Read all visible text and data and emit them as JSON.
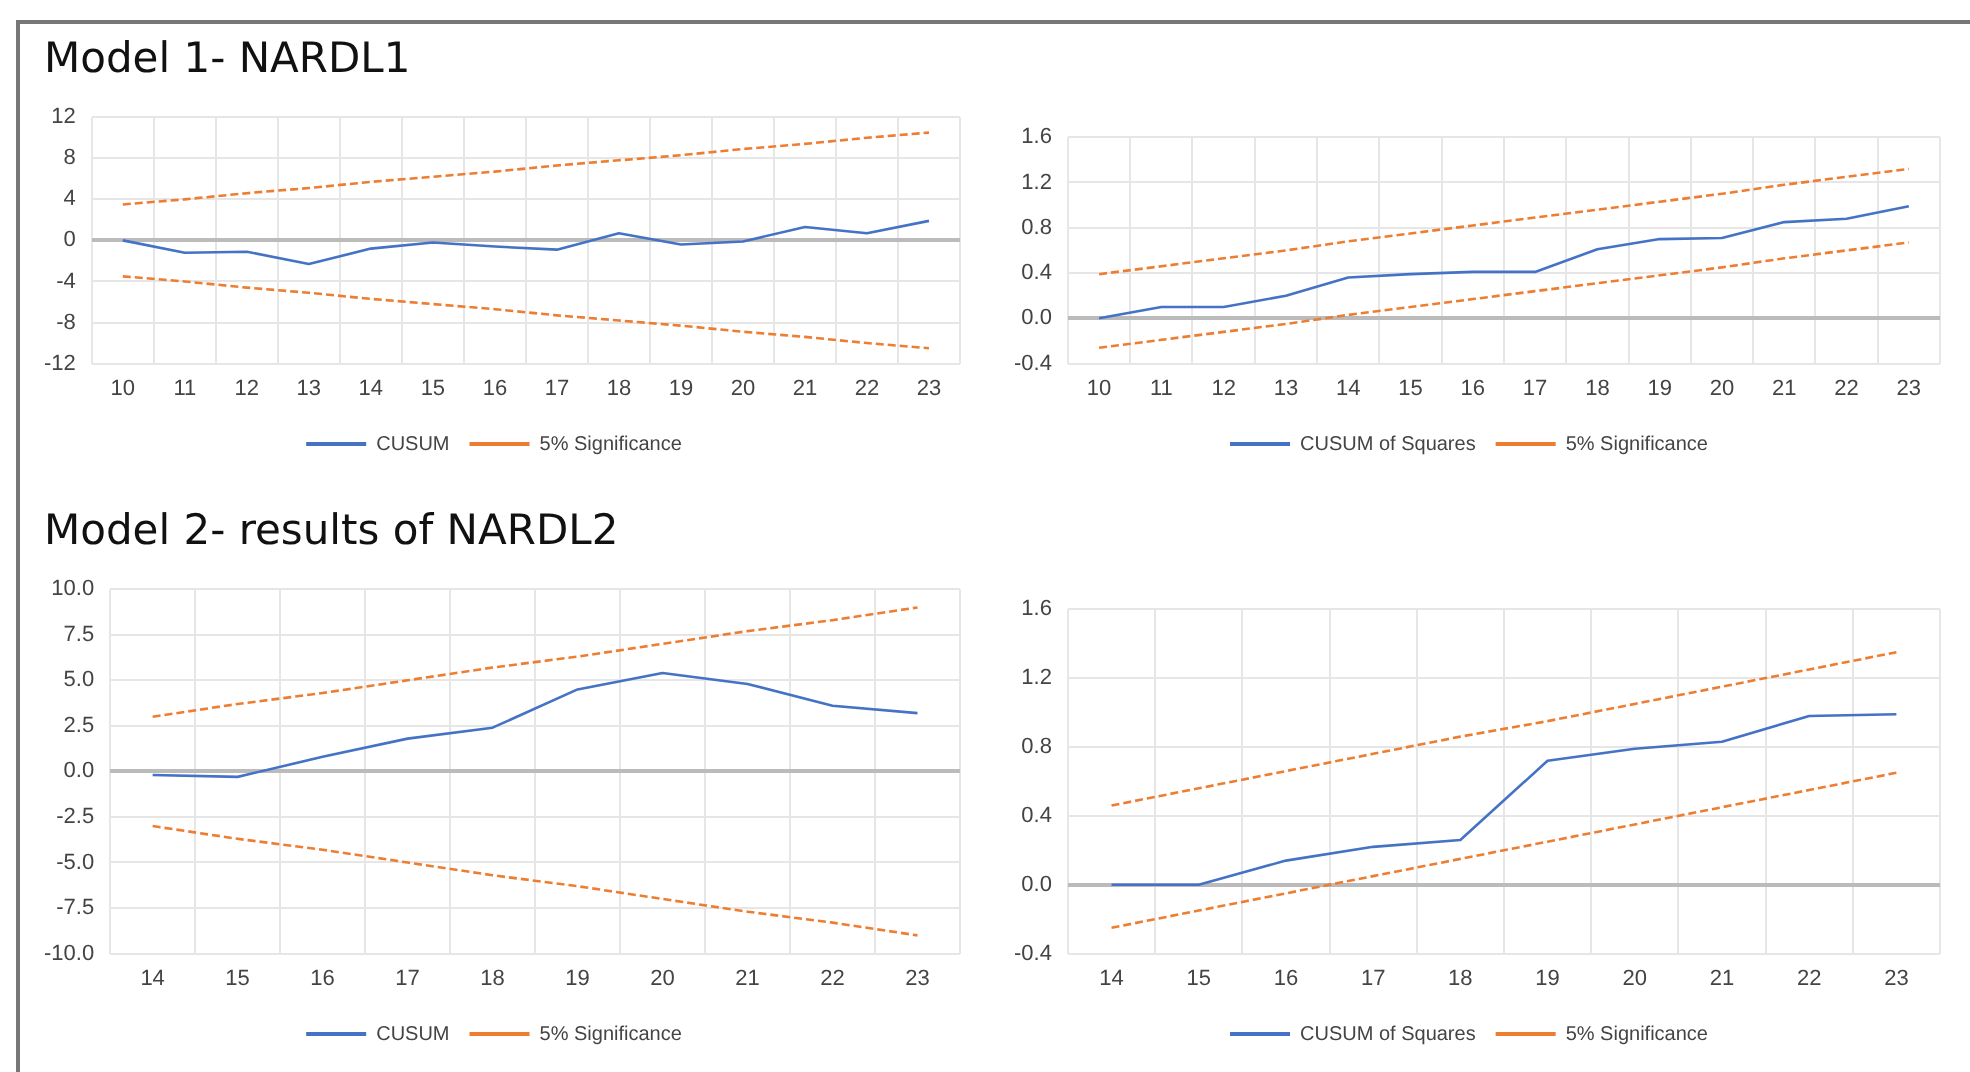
{
  "chart_data": [
    {
      "type": "line",
      "title": "Model 1- NARDL1",
      "categories": [
        "10",
        "11",
        "12",
        "13",
        "14",
        "15",
        "16",
        "17",
        "18",
        "19",
        "20",
        "21",
        "22",
        "23"
      ],
      "series": [
        {
          "name": "CUSUM",
          "color": "#4472c4",
          "line_style": "solid",
          "values": [
            0,
            -1.2,
            -1.1,
            -2.3,
            -0.8,
            -0.2,
            -0.6,
            -0.9,
            0.7,
            -0.4,
            -0.1,
            1.3,
            0.7,
            1.9
          ]
        },
        {
          "name": "5% Significance",
          "color": "#ed7d31",
          "line_style": "dashed",
          "values": [
            3.5,
            4.0,
            4.6,
            5.1,
            5.7,
            6.2,
            6.7,
            7.3,
            7.8,
            8.3,
            8.9,
            9.4,
            10.0,
            10.5
          ]
        },
        {
          "color": "#ed7d31",
          "line_style": "dashed",
          "values": [
            -3.5,
            -4.0,
            -4.6,
            -5.1,
            -5.7,
            -6.2,
            -6.7,
            -7.3,
            -7.8,
            -8.3,
            -8.9,
            -9.4,
            -10.0,
            -10.5
          ]
        }
      ],
      "ylim": [
        -12,
        12
      ],
      "yticks": [
        -12,
        -8,
        -4,
        0,
        4,
        8,
        12
      ],
      "grid": true,
      "legend": "bottom",
      "marker": "none"
    },
    {
      "type": "line",
      "categories": [
        "10",
        "11",
        "12",
        "13",
        "14",
        "15",
        "16",
        "17",
        "18",
        "19",
        "20",
        "21",
        "22",
        "23"
      ],
      "series": [
        {
          "name": "CUSUM of Squares",
          "color": "#4472c4",
          "line_style": "solid",
          "values": [
            0,
            0.1,
            0.1,
            0.2,
            0.36,
            0.39,
            0.41,
            0.41,
            0.61,
            0.7,
            0.71,
            0.85,
            0.88,
            0.99
          ]
        },
        {
          "name": "5% Significance",
          "color": "#ed7d31",
          "line_style": "dashed",
          "values": [
            0.39,
            0.46,
            0.53,
            0.6,
            0.68,
            0.75,
            0.82,
            0.89,
            0.96,
            1.03,
            1.1,
            1.18,
            1.25,
            1.32
          ]
        },
        {
          "color": "#ed7d31",
          "line_style": "dashed",
          "values": [
            -0.26,
            -0.19,
            -0.12,
            -0.05,
            0.03,
            0.1,
            0.17,
            0.24,
            0.31,
            0.38,
            0.45,
            0.53,
            0.6,
            0.67
          ]
        }
      ],
      "ylim": [
        -0.4,
        1.6
      ],
      "yticks": [
        -0.4,
        {
          "value": 0,
          "label": "0.0"
        },
        0.4,
        0.8,
        1.2,
        1.6
      ],
      "grid": true,
      "legend": "bottom",
      "marker": "none"
    },
    {
      "type": "line",
      "title": "Model 2- results of NARDL2",
      "categories": [
        "14",
        "15",
        "16",
        "17",
        "18",
        "19",
        "20",
        "21",
        "22",
        "23"
      ],
      "series": [
        {
          "name": "CUSUM",
          "color": "#4472c4",
          "line_style": "solid",
          "values": [
            -0.2,
            -0.3,
            0.8,
            1.8,
            2.4,
            4.5,
            5.4,
            4.8,
            3.6,
            3.2
          ]
        },
        {
          "name": "5% Significance",
          "color": "#ed7d31",
          "line_style": "dashed",
          "values": [
            3.0,
            3.7,
            4.3,
            5.0,
            5.7,
            6.3,
            7.0,
            7.7,
            8.3,
            9.0
          ]
        },
        {
          "color": "#ed7d31",
          "line_style": "dashed",
          "values": [
            -3.0,
            -3.7,
            -4.3,
            -5.0,
            -5.7,
            -6.3,
            -7.0,
            -7.7,
            -8.3,
            -9.0
          ]
        }
      ],
      "ylim": [
        -10,
        10
      ],
      "yticks": [
        {
          "value": -10,
          "label": "-10.0"
        },
        -7.5,
        {
          "value": -5,
          "label": "-5.0"
        },
        -2.5,
        {
          "value": 0,
          "label": "0.0"
        },
        2.5,
        {
          "value": 5,
          "label": "5.0"
        },
        7.5,
        {
          "value": 10,
          "label": "10.0"
        }
      ],
      "grid": true,
      "legend": "bottom",
      "marker": "none"
    },
    {
      "type": "line",
      "categories": [
        "14",
        "15",
        "16",
        "17",
        "18",
        "19",
        "20",
        "21",
        "22",
        "23"
      ],
      "series": [
        {
          "name": "CUSUM of Squares",
          "color": "#4472c4",
          "line_style": "solid",
          "values": [
            0,
            0,
            0.14,
            0.22,
            0.26,
            0.72,
            0.79,
            0.83,
            0.98,
            0.99
          ]
        },
        {
          "name": "5% Significance",
          "color": "#ed7d31",
          "line_style": "dashed",
          "values": [
            0.46,
            0.56,
            0.66,
            0.76,
            0.86,
            0.95,
            1.05,
            1.15,
            1.25,
            1.35
          ]
        },
        {
          "color": "#ed7d31",
          "line_style": "dashed",
          "values": [
            -0.25,
            -0.15,
            -0.05,
            0.05,
            0.15,
            0.25,
            0.35,
            0.45,
            0.55,
            0.65
          ]
        }
      ],
      "ylim": [
        -0.4,
        1.6
      ],
      "yticks": [
        -0.4,
        {
          "value": 0,
          "label": "0.0"
        },
        0.4,
        0.8,
        1.2,
        1.6
      ],
      "grid": true,
      "legend": "bottom",
      "marker": "none"
    }
  ]
}
